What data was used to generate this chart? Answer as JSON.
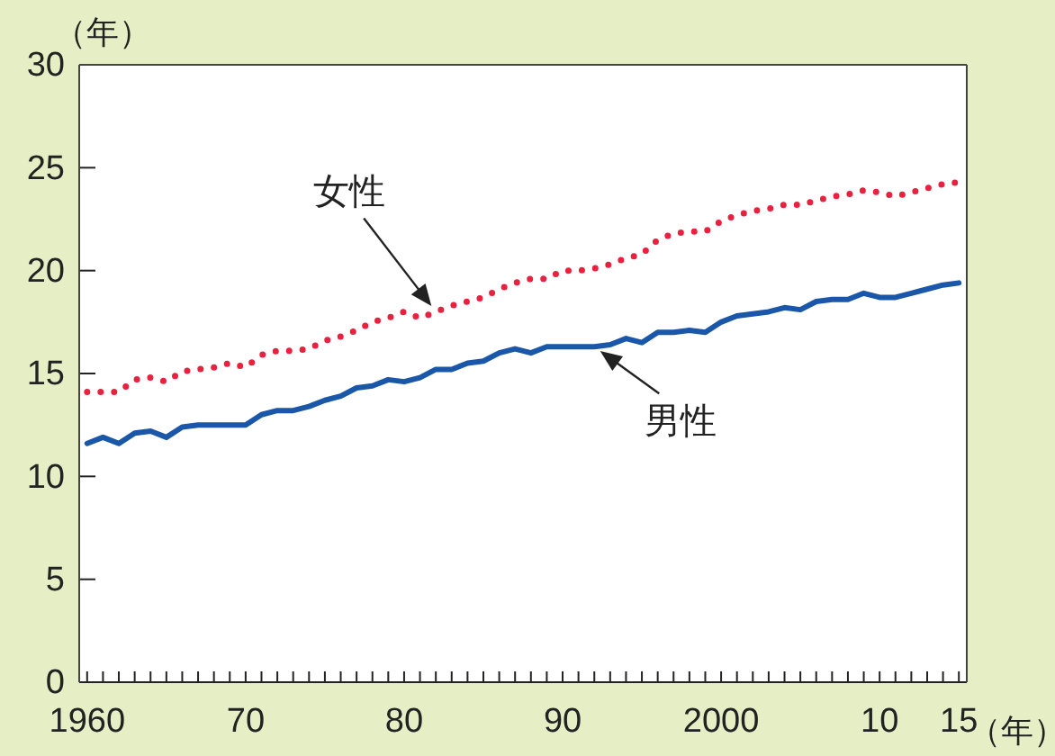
{
  "chart_data": {
    "type": "line",
    "ylabel": "（年）",
    "xlabel": "（年）",
    "x": [
      1960,
      1961,
      1962,
      1963,
      1964,
      1965,
      1966,
      1967,
      1968,
      1969,
      1970,
      1971,
      1972,
      1973,
      1974,
      1975,
      1976,
      1977,
      1978,
      1979,
      1980,
      1981,
      1982,
      1983,
      1984,
      1985,
      1986,
      1987,
      1988,
      1989,
      1990,
      1991,
      1992,
      1993,
      1994,
      1995,
      1996,
      1997,
      1998,
      1999,
      2000,
      2001,
      2002,
      2003,
      2004,
      2005,
      2006,
      2007,
      2008,
      2009,
      2010,
      2011,
      2012,
      2013,
      2014,
      2015
    ],
    "series": [
      {
        "name": "女性",
        "color": "#e8213f",
        "line_style": "dotted",
        "values": [
          14.1,
          14.1,
          14.1,
          14.7,
          14.8,
          14.6,
          15.1,
          15.2,
          15.3,
          15.5,
          15.3,
          15.9,
          16.1,
          16.1,
          16.2,
          16.6,
          16.8,
          17.1,
          17.5,
          17.7,
          18.0,
          17.7,
          18.0,
          18.3,
          18.5,
          18.7,
          19.1,
          19.4,
          19.6,
          19.6,
          20.0,
          20.0,
          20.1,
          20.3,
          20.6,
          20.8,
          21.5,
          21.8,
          21.9,
          21.9,
          22.4,
          22.7,
          22.9,
          23.0,
          23.2,
          23.2,
          23.4,
          23.6,
          23.7,
          23.9,
          23.8,
          23.6,
          23.8,
          24.0,
          24.2,
          24.3
        ]
      },
      {
        "name": "男性",
        "color": "#1a57a8",
        "line_style": "solid",
        "values": [
          11.6,
          11.9,
          11.6,
          12.1,
          12.2,
          11.9,
          12.4,
          12.5,
          12.5,
          12.5,
          12.5,
          13.0,
          13.2,
          13.2,
          13.4,
          13.7,
          13.9,
          14.3,
          14.4,
          14.7,
          14.6,
          14.8,
          15.2,
          15.2,
          15.5,
          15.6,
          16.0,
          16.2,
          16.0,
          16.3,
          16.3,
          16.3,
          16.3,
          16.4,
          16.7,
          16.5,
          17.0,
          17.0,
          17.1,
          17.0,
          17.5,
          17.8,
          17.9,
          18.0,
          18.2,
          18.1,
          18.5,
          18.6,
          18.6,
          18.9,
          18.7,
          18.7,
          18.9,
          19.1,
          19.3,
          19.4
        ]
      }
    ],
    "xlim": [
      1959.5,
      2015.5
    ],
    "xticks": [
      {
        "value": 1960,
        "label": "1960"
      },
      {
        "value": 1961,
        "label": null
      },
      {
        "value": 1962,
        "label": null
      },
      {
        "value": 1963,
        "label": null
      },
      {
        "value": 1964,
        "label": null
      },
      {
        "value": 1965,
        "label": null
      },
      {
        "value": 1966,
        "label": null
      },
      {
        "value": 1967,
        "label": null
      },
      {
        "value": 1968,
        "label": null
      },
      {
        "value": 1969,
        "label": null
      },
      {
        "value": 1970,
        "label": "70"
      },
      {
        "value": 1971,
        "label": null
      },
      {
        "value": 1972,
        "label": null
      },
      {
        "value": 1973,
        "label": null
      },
      {
        "value": 1974,
        "label": null
      },
      {
        "value": 1975,
        "label": null
      },
      {
        "value": 1976,
        "label": null
      },
      {
        "value": 1977,
        "label": null
      },
      {
        "value": 1978,
        "label": null
      },
      {
        "value": 1979,
        "label": null
      },
      {
        "value": 1980,
        "label": "80"
      },
      {
        "value": 1981,
        "label": null
      },
      {
        "value": 1982,
        "label": null
      },
      {
        "value": 1983,
        "label": null
      },
      {
        "value": 1984,
        "label": null
      },
      {
        "value": 1985,
        "label": null
      },
      {
        "value": 1986,
        "label": null
      },
      {
        "value": 1987,
        "label": null
      },
      {
        "value": 1988,
        "label": null
      },
      {
        "value": 1989,
        "label": null
      },
      {
        "value": 1990,
        "label": "90"
      },
      {
        "value": 1991,
        "label": null
      },
      {
        "value": 1992,
        "label": null
      },
      {
        "value": 1993,
        "label": null
      },
      {
        "value": 1994,
        "label": null
      },
      {
        "value": 1995,
        "label": null
      },
      {
        "value": 1996,
        "label": null
      },
      {
        "value": 1997,
        "label": null
      },
      {
        "value": 1998,
        "label": null
      },
      {
        "value": 1999,
        "label": null
      },
      {
        "value": 2000,
        "label": "2000"
      },
      {
        "value": 2001,
        "label": null
      },
      {
        "value": 2002,
        "label": null
      },
      {
        "value": 2003,
        "label": null
      },
      {
        "value": 2004,
        "label": null
      },
      {
        "value": 2005,
        "label": null
      },
      {
        "value": 2006,
        "label": null
      },
      {
        "value": 2007,
        "label": null
      },
      {
        "value": 2008,
        "label": null
      },
      {
        "value": 2009,
        "label": null
      },
      {
        "value": 2010,
        "label": "10"
      },
      {
        "value": 2011,
        "label": null
      },
      {
        "value": 2012,
        "label": null
      },
      {
        "value": 2013,
        "label": null
      },
      {
        "value": 2014,
        "label": null
      },
      {
        "value": 2015,
        "label": "15"
      }
    ],
    "ylim": [
      0,
      30
    ],
    "yticks": [
      0,
      5,
      10,
      15,
      20,
      25,
      30
    ],
    "grid": false,
    "legend": false,
    "marker": "none"
  }
}
